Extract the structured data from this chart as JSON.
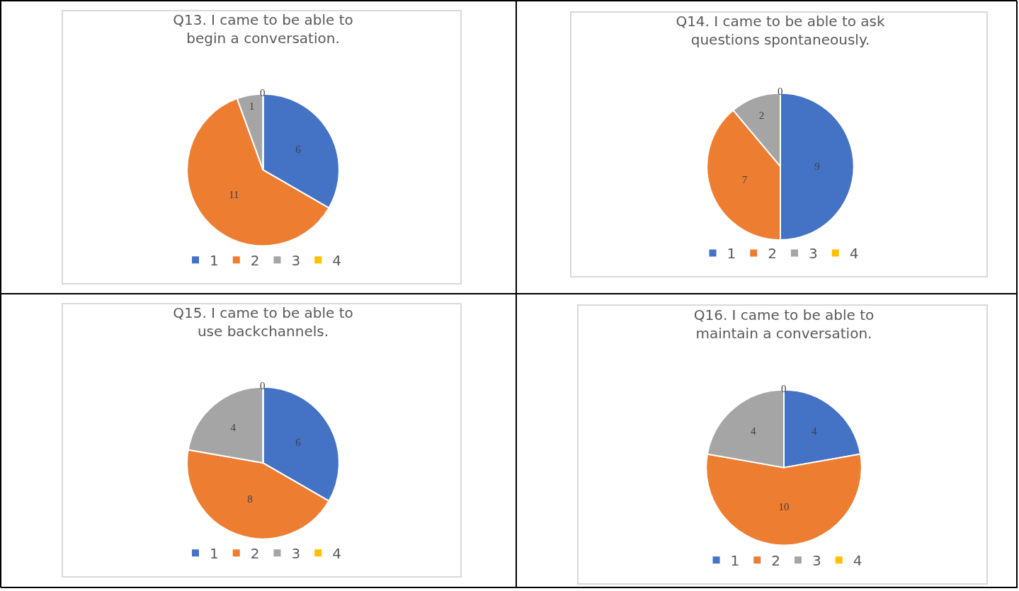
{
  "chart_data": [
    {
      "type": "pie",
      "title": "Q13. I came to be able to\nbegin a conversation.",
      "categories": [
        "1",
        "2",
        "3",
        "4"
      ],
      "values": [
        6,
        11,
        1,
        0
      ],
      "value_labels": [
        "6",
        "11",
        "1",
        "0"
      ],
      "colors": [
        "#4472c4",
        "#ed7d31",
        "#a5a5a5",
        "#ffc000"
      ],
      "legend": "bottom"
    },
    {
      "type": "pie",
      "title": "Q14. I came to be able to ask\nquestions spontaneously.",
      "categories": [
        "1",
        "2",
        "3",
        "4"
      ],
      "values": [
        9,
        7,
        2,
        0
      ],
      "value_labels": [
        "9",
        "7",
        "2",
        "0"
      ],
      "colors": [
        "#4472c4",
        "#ed7d31",
        "#a5a5a5",
        "#ffc000"
      ],
      "legend": "bottom"
    },
    {
      "type": "pie",
      "title": "Q15. I came to be able to\nuse backchannels.",
      "categories": [
        "1",
        "2",
        "3",
        "4"
      ],
      "values": [
        6,
        8,
        4,
        0
      ],
      "value_labels": [
        "6",
        "8",
        "4",
        "0"
      ],
      "colors": [
        "#4472c4",
        "#ed7d31",
        "#a5a5a5",
        "#ffc000"
      ],
      "legend": "bottom"
    },
    {
      "type": "pie",
      "title": "Q16. I came to be able to\nmaintain a conversation.",
      "categories": [
        "1",
        "2",
        "3",
        "4"
      ],
      "values": [
        4,
        10,
        4,
        0
      ],
      "value_labels": [
        "4",
        "10",
        "4",
        "0"
      ],
      "colors": [
        "#4472c4",
        "#ed7d31",
        "#a5a5a5",
        "#ffc000"
      ],
      "legend": "bottom"
    }
  ]
}
